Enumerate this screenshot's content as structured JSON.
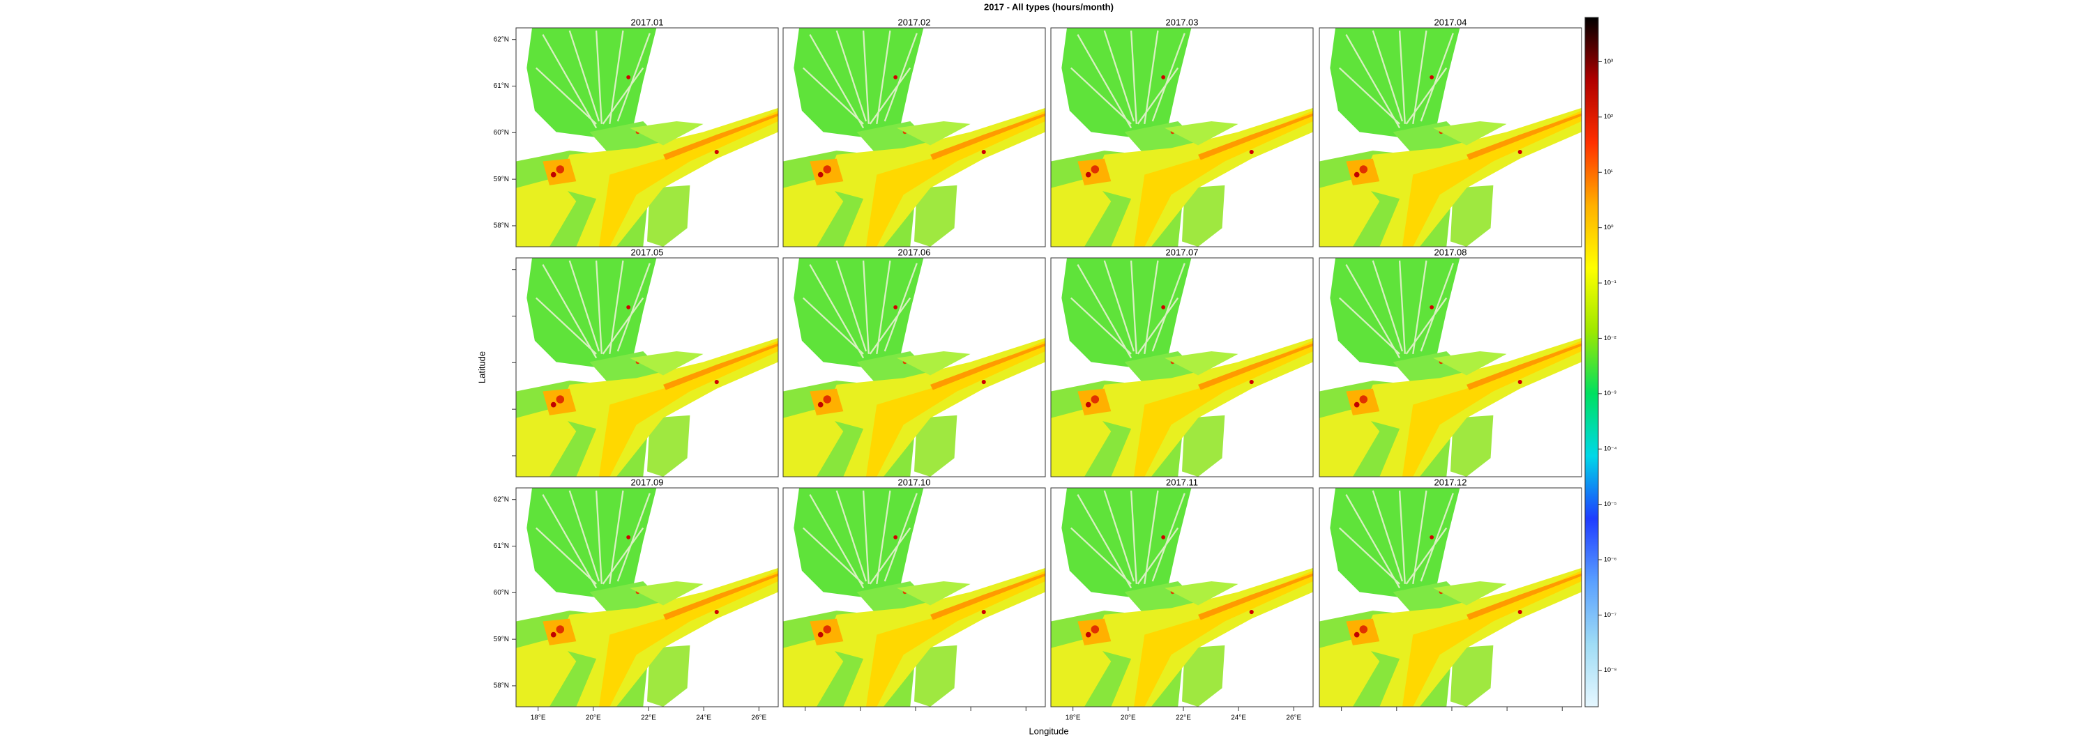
{
  "title": "2017 - All types (hours/month)",
  "xlabel": "Longitude",
  "ylabel": "Latitude",
  "panels": [
    "2017.01",
    "2017.02",
    "2017.03",
    "2017.04",
    "2017.05",
    "2017.06",
    "2017.07",
    "2017.08",
    "2017.09",
    "2017.10",
    "2017.11",
    "2017.12"
  ],
  "xlim": [
    17.2,
    26.7
  ],
  "ylim": [
    57.55,
    62.25
  ],
  "xticks": [
    {
      "value": 18,
      "label": "18°E"
    },
    {
      "value": 20,
      "label": "20°E"
    },
    {
      "value": 22,
      "label": "22°E"
    },
    {
      "value": 24,
      "label": "24°E"
    },
    {
      "value": 26,
      "label": "26°E"
    }
  ],
  "yticks": [
    {
      "value": 58,
      "label": "58°N"
    },
    {
      "value": 59,
      "label": "59°N"
    },
    {
      "value": 60,
      "label": "60°N"
    },
    {
      "value": 61,
      "label": "61°N"
    },
    {
      "value": 62,
      "label": "62°N"
    }
  ],
  "colorbar": {
    "scale": "log",
    "lim": [
      2.2e-09,
      6300
    ],
    "colors": [
      "#e6f7ff",
      "#9fdcf5",
      "#5aa0ff",
      "#1f3cff",
      "#00d8e8",
      "#00e060",
      "#9fe800",
      "#ffff00",
      "#ffb000",
      "#ff3000",
      "#b00000",
      "#000000"
    ],
    "ticks": [
      {
        "value": 1e-08,
        "label": "10⁻⁸"
      },
      {
        "value": 1e-07,
        "label": "10⁻⁷"
      },
      {
        "value": 1e-06,
        "label": "10⁻⁶"
      },
      {
        "value": 1e-05,
        "label": "10⁻⁵"
      },
      {
        "value": 0.0001,
        "label": "10⁻⁴"
      },
      {
        "value": 0.001,
        "label": "10⁻³"
      },
      {
        "value": 0.01,
        "label": "10⁻²"
      },
      {
        "value": 0.1,
        "label": "10⁻¹"
      },
      {
        "value": 1,
        "label": "10⁰"
      },
      {
        "value": 10,
        "label": "10¹"
      },
      {
        "value": 100,
        "label": "10²"
      },
      {
        "value": 1000,
        "label": "10³"
      }
    ]
  }
}
